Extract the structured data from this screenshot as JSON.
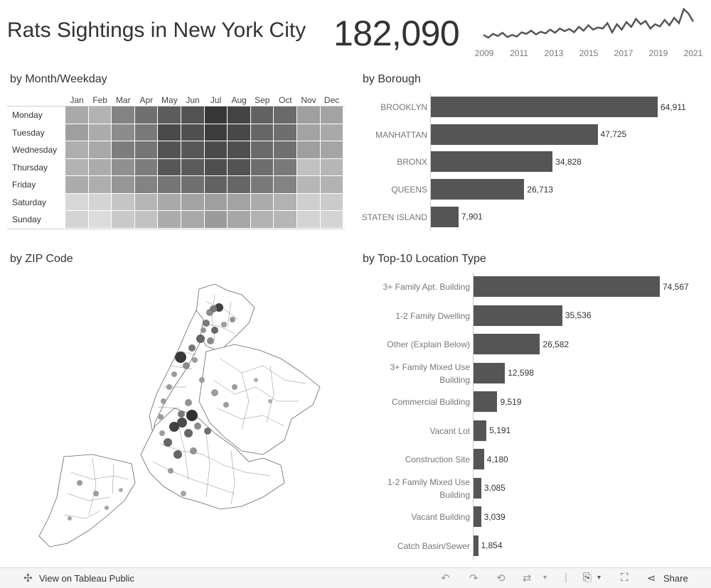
{
  "header": {
    "title": "Rats Sightings in New York City",
    "total": "182,090",
    "trend_years": [
      "2009",
      "2011",
      "2013",
      "2015",
      "2017",
      "2019",
      "2021"
    ],
    "trend_values": [
      40,
      35,
      42,
      38,
      44,
      36,
      40,
      37,
      45,
      42,
      48,
      41,
      46,
      43,
      50,
      44,
      52,
      47,
      51,
      45,
      55,
      48,
      58,
      50,
      54,
      52,
      62,
      45,
      60,
      50,
      64,
      55,
      70,
      60,
      66,
      52,
      60,
      56,
      68,
      58,
      72,
      62,
      88,
      80,
      65
    ]
  },
  "heatmap": {
    "title": "by Month/Weekday",
    "months": [
      "Jan",
      "Feb",
      "Mar",
      "Apr",
      "May",
      "Jun",
      "Jul",
      "Aug",
      "Sep",
      "Oct",
      "Nov",
      "Dec"
    ],
    "days": [
      "Monday",
      "Tuesday",
      "Wednesday",
      "Thursday",
      "Friday",
      "Saturday",
      "Sunday"
    ],
    "values": [
      [
        0.35,
        0.3,
        0.55,
        0.65,
        0.75,
        0.8,
        0.95,
        0.88,
        0.72,
        0.68,
        0.4,
        0.38
      ],
      [
        0.4,
        0.33,
        0.5,
        0.6,
        0.85,
        0.82,
        0.92,
        0.86,
        0.7,
        0.66,
        0.38,
        0.35
      ],
      [
        0.32,
        0.35,
        0.58,
        0.62,
        0.8,
        0.78,
        0.85,
        0.82,
        0.68,
        0.65,
        0.4,
        0.37
      ],
      [
        0.3,
        0.33,
        0.48,
        0.58,
        0.78,
        0.76,
        0.82,
        0.8,
        0.66,
        0.6,
        0.22,
        0.28
      ],
      [
        0.33,
        0.32,
        0.45,
        0.55,
        0.62,
        0.65,
        0.72,
        0.7,
        0.6,
        0.55,
        0.28,
        0.3
      ],
      [
        0.1,
        0.12,
        0.2,
        0.28,
        0.35,
        0.38,
        0.4,
        0.38,
        0.33,
        0.3,
        0.15,
        0.17
      ],
      [
        0.12,
        0.08,
        0.18,
        0.22,
        0.33,
        0.35,
        0.42,
        0.36,
        0.3,
        0.28,
        0.12,
        0.12
      ]
    ]
  },
  "borough": {
    "title": "by Borough",
    "items": [
      {
        "label": "BROOKLYN",
        "value": 64911,
        "display": "64,911"
      },
      {
        "label": "MANHATTAN",
        "value": 47725,
        "display": "47,725"
      },
      {
        "label": "BRONX",
        "value": 34828,
        "display": "34,828"
      },
      {
        "label": "QUEENS",
        "value": 26713,
        "display": "26,713"
      },
      {
        "label": "STATEN ISLAND",
        "value": 7901,
        "display": "7,901"
      }
    ]
  },
  "zip": {
    "title": "by ZIP Code"
  },
  "location": {
    "title": "by Top-10 Location Type",
    "items": [
      {
        "label": [
          "3+ Family Apt. Building"
        ],
        "value": 74567,
        "display": "74,567"
      },
      {
        "label": [
          "1-2 Family Dwelling"
        ],
        "value": 35536,
        "display": "35,536"
      },
      {
        "label": [
          "Other (Explain Below)"
        ],
        "value": 26582,
        "display": "26,582"
      },
      {
        "label": [
          "3+ Family Mixed Use",
          "Building"
        ],
        "value": 12598,
        "display": "12,598"
      },
      {
        "label": [
          "Commercial Building"
        ],
        "value": 9519,
        "display": "9,519"
      },
      {
        "label": [
          "Vacant Lot"
        ],
        "value": 5191,
        "display": "5,191"
      },
      {
        "label": [
          "Construction Site"
        ],
        "value": 4180,
        "display": "4,180"
      },
      {
        "label": [
          "1-2 Family Mixed Use",
          "Building"
        ],
        "value": 3085,
        "display": "3,085"
      },
      {
        "label": [
          "Vacant Building"
        ],
        "value": 3039,
        "display": "3,039"
      },
      {
        "label": [
          "Catch Basin/Sewer"
        ],
        "value": 1854,
        "display": "1,854"
      }
    ]
  },
  "footer": {
    "view_label": "View on Tableau Public",
    "share_label": "Share",
    "icons": [
      "tableau-icon",
      "undo-icon",
      "redo-icon",
      "revert-icon",
      "refresh-icon",
      "download-icon",
      "fullscreen-icon",
      "share-icon"
    ]
  },
  "colors": {
    "bar": "#555555",
    "accent": "#333333"
  }
}
